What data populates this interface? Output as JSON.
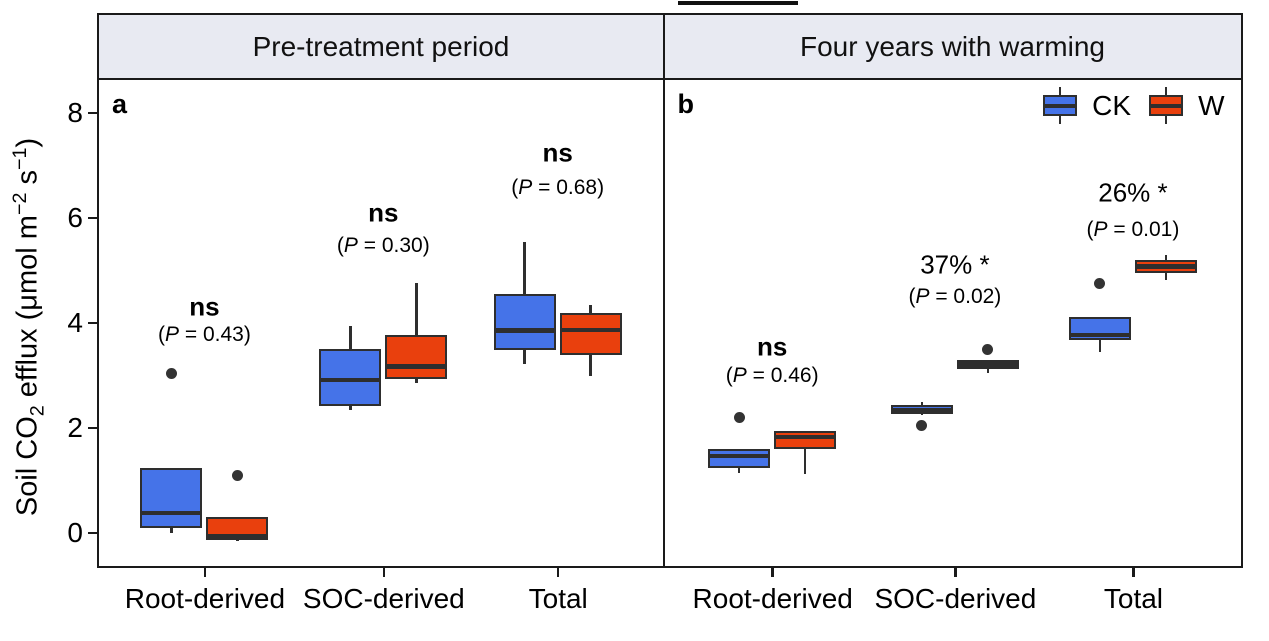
{
  "colors": {
    "ck_blue": "#4573e8",
    "w_red": "#e9400d",
    "box_stroke": "#2e2e2e",
    "strip_bg": "#e8eaf2",
    "panel_border": "#1a1a1a",
    "outlier_dot": "#333333"
  },
  "legend": {
    "items": [
      {
        "label": "CK",
        "color_key": "ck_blue"
      },
      {
        "label": "W",
        "color_key": "w_red"
      }
    ]
  },
  "chart_data": {
    "type": "boxplot",
    "ylabel_text": "Soil CO2 efflux (μmol m−2 s−1)",
    "ylabel_parts": [
      {
        "t": "Soil CO"
      },
      {
        "t": "2",
        "sub": true
      },
      {
        "t": " efflux (μmol m"
      },
      {
        "t": "−2",
        "sup": true
      },
      {
        "t": " s"
      },
      {
        "t": "−1",
        "sup": true
      },
      {
        "t": ")"
      }
    ],
    "yticks": [
      0,
      2,
      4,
      6,
      8
    ],
    "ylim": [
      -0.62,
      8.52
    ],
    "grid": false,
    "legend_position": "top-right-panel-b",
    "categories": [
      "Root-derived",
      "SOC-derived",
      "Total"
    ],
    "series": [
      "CK",
      "W"
    ],
    "panels": [
      {
        "tag": "a",
        "title": "Pre-treatment period",
        "groups": [
          {
            "category": "Root-derived",
            "annotation": {
              "line1": "ns",
              "bold": true,
              "line2": "(P = 0.43)",
              "line1_y": 4.25,
              "line2_y": 3.72
            },
            "boxes": [
              {
                "series": "CK",
                "min": -0.05,
                "q1": 0.05,
                "median": 0.33,
                "q3": 1.2,
                "max": 1.2,
                "outliers": [
                  3.0
                ]
              },
              {
                "series": "W",
                "min": -0.2,
                "q1": -0.18,
                "median": -0.1,
                "q3": 0.25,
                "max": 0.25,
                "outliers": [
                  1.05
                ]
              }
            ]
          },
          {
            "category": "SOC-derived",
            "annotation": {
              "line1": "ns",
              "bold": true,
              "line2": "(P = 0.30)",
              "line1_y": 6.05,
              "line2_y": 5.42
            },
            "boxes": [
              {
                "series": "CK",
                "min": 2.3,
                "q1": 2.38,
                "median": 2.87,
                "q3": 3.45,
                "max": 3.9,
                "outliers": []
              },
              {
                "series": "W",
                "min": 2.8,
                "q1": 2.88,
                "median": 3.12,
                "q3": 3.73,
                "max": 4.72,
                "outliers": []
              }
            ]
          },
          {
            "category": "Total",
            "annotation": {
              "line1": "ns",
              "bold": true,
              "line2": "(P = 0.68)",
              "line1_y": 7.2,
              "line2_y": 6.53
            },
            "boxes": [
              {
                "series": "CK",
                "min": 3.17,
                "q1": 3.43,
                "median": 3.81,
                "q3": 4.5,
                "max": 5.49,
                "outliers": []
              },
              {
                "series": "W",
                "min": 2.95,
                "q1": 3.35,
                "median": 3.82,
                "q3": 4.15,
                "max": 4.3,
                "outliers": []
              }
            ]
          }
        ]
      },
      {
        "tag": "b",
        "title": "Four years with warming",
        "groups": [
          {
            "category": "Root-derived",
            "annotation": {
              "line1": "ns",
              "bold": true,
              "line2": "(P = 0.46)",
              "line1_y": 3.5,
              "line2_y": 2.95
            },
            "boxes": [
              {
                "series": "CK",
                "min": 1.1,
                "q1": 1.2,
                "median": 1.42,
                "q3": 1.55,
                "max": 1.55,
                "outliers": [
                  2.15
                ]
              },
              {
                "series": "W",
                "min": 1.07,
                "q1": 1.55,
                "median": 1.78,
                "q3": 1.9,
                "max": 1.9,
                "outliers": []
              }
            ]
          },
          {
            "category": "SOC-derived",
            "annotation": {
              "line1": "37% *",
              "bold": false,
              "line2": "(P = 0.02)",
              "line1_y": 5.05,
              "line2_y": 4.44
            },
            "boxes": [
              {
                "series": "CK",
                "min": 2.2,
                "q1": 2.21,
                "median": 2.3,
                "q3": 2.4,
                "max": 2.45,
                "outliers": [
                  2.0
                ]
              },
              {
                "series": "W",
                "min": 3.0,
                "q1": 3.07,
                "median": 3.16,
                "q3": 3.24,
                "max": 3.24,
                "outliers": [
                  3.45
                ]
              }
            ]
          },
          {
            "category": "Total",
            "annotation": {
              "line1": "26% *",
              "bold": false,
              "line2": "(P = 0.01)",
              "line1_y": 6.42,
              "line2_y": 5.73
            },
            "boxes": [
              {
                "series": "CK",
                "min": 3.4,
                "q1": 3.62,
                "median": 3.72,
                "q3": 4.06,
                "max": 4.06,
                "outliers": [
                  4.7
                ]
              },
              {
                "series": "W",
                "min": 4.78,
                "q1": 4.9,
                "median": 5.03,
                "q3": 5.16,
                "max": 5.25,
                "outliers": []
              }
            ]
          }
        ]
      }
    ]
  }
}
